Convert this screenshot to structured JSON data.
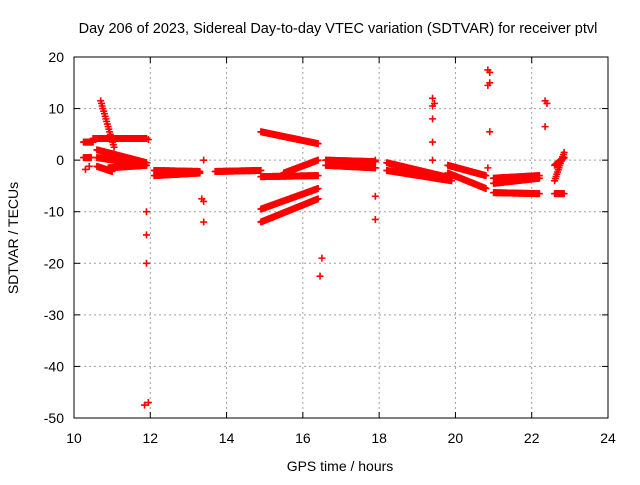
{
  "chart_data": {
    "type": "scatter",
    "title": "Day 206 of 2023, Sidereal Day-to-day VTEC variation (SDTVAR) for receiver ptvl",
    "xlabel": "GPS time / hours",
    "ylabel": "SDTVAR / TECUs",
    "xlim": [
      10,
      24
    ],
    "ylim": [
      -50,
      20
    ],
    "xticks": [
      "10",
      "12",
      "14",
      "16",
      "18",
      "20",
      "22",
      "24"
    ],
    "yticks": [
      "20",
      "10",
      "0",
      "-10",
      "-20",
      "-30",
      "-40",
      "-50"
    ],
    "grid": true,
    "marker": "plus",
    "color": "#ff0000",
    "segments": [
      {
        "x0": 10.25,
        "x1": 10.5,
        "y0": 3.5,
        "y1": 3.5
      },
      {
        "x0": 10.25,
        "x1": 10.45,
        "y0": 0.5,
        "y1": 0.5
      },
      {
        "x0": 10.7,
        "x1": 11.05,
        "y0": 11.5,
        "y1": 2.5
      },
      {
        "x0": 10.5,
        "x1": 11.9,
        "y0": 4.2,
        "y1": 4.2
      },
      {
        "x0": 10.6,
        "x1": 11.9,
        "y0": 2.0,
        "y1": -0.5
      },
      {
        "x0": 10.6,
        "x1": 11.9,
        "y0": 0.5,
        "y1": -1.0
      },
      {
        "x0": 10.9,
        "x1": 11.9,
        "y0": -1.5,
        "y1": -1.0
      },
      {
        "x0": 10.6,
        "x1": 11.0,
        "y0": -1.2,
        "y1": -2.2
      },
      {
        "x0": 12.1,
        "x1": 13.3,
        "y0": -2.0,
        "y1": -2.2
      },
      {
        "x0": 12.1,
        "x1": 13.3,
        "y0": -3.0,
        "y1": -2.5
      },
      {
        "x0": 13.7,
        "x1": 14.9,
        "y0": -2.2,
        "y1": -2.0
      },
      {
        "x0": 14.9,
        "x1": 16.4,
        "y0": 5.5,
        "y1": 3.2
      },
      {
        "x0": 14.9,
        "x1": 16.4,
        "y0": -3.2,
        "y1": -3.0
      },
      {
        "x0": 15.5,
        "x1": 16.4,
        "y0": -2.5,
        "y1": 0.0
      },
      {
        "x0": 14.9,
        "x1": 16.4,
        "y0": -9.5,
        "y1": -5.5
      },
      {
        "x0": 14.9,
        "x1": 16.4,
        "y0": -12.0,
        "y1": -7.5
      },
      {
        "x0": 16.6,
        "x1": 17.9,
        "y0": 0.0,
        "y1": -0.3
      },
      {
        "x0": 16.6,
        "x1": 17.9,
        "y0": -1.0,
        "y1": -1.5
      },
      {
        "x0": 18.2,
        "x1": 19.9,
        "y0": -0.5,
        "y1": -3.5
      },
      {
        "x0": 18.2,
        "x1": 19.9,
        "y0": -2.0,
        "y1": -4.0
      },
      {
        "x0": 19.8,
        "x1": 20.8,
        "y0": -1.0,
        "y1": -3.0
      },
      {
        "x0": 19.8,
        "x1": 20.8,
        "y0": -2.5,
        "y1": -5.5
      },
      {
        "x0": 21.0,
        "x1": 22.2,
        "y0": -3.5,
        "y1": -3.0
      },
      {
        "x0": 21.0,
        "x1": 22.2,
        "y0": -4.5,
        "y1": -3.5
      },
      {
        "x0": 21.0,
        "x1": 22.2,
        "y0": -6.3,
        "y1": -6.5
      },
      {
        "x0": 22.6,
        "x1": 22.85,
        "y0": -6.5,
        "y1": -6.5
      },
      {
        "x0": 22.6,
        "x1": 22.85,
        "y0": -4.0,
        "y1": 1.5
      },
      {
        "x0": 22.6,
        "x1": 22.85,
        "y0": -1.0,
        "y1": 0.5
      }
    ],
    "points": [
      [
        10.3,
        -1.8
      ],
      [
        10.4,
        -1.2
      ],
      [
        11.95,
        4.0
      ],
      [
        11.9,
        -10.0
      ],
      [
        11.9,
        -14.5
      ],
      [
        11.9,
        -20.0
      ],
      [
        11.85,
        -47.5
      ],
      [
        11.95,
        -47.0
      ],
      [
        13.4,
        0.0
      ],
      [
        13.35,
        -7.5
      ],
      [
        13.4,
        -8.0
      ],
      [
        13.4,
        -12.0
      ],
      [
        16.5,
        -19.0
      ],
      [
        16.45,
        -22.5
      ],
      [
        17.9,
        0.0
      ],
      [
        17.9,
        -7.0
      ],
      [
        17.9,
        -11.5
      ],
      [
        19.4,
        12.0
      ],
      [
        19.45,
        11.0
      ],
      [
        19.4,
        10.5
      ],
      [
        19.4,
        8.0
      ],
      [
        19.4,
        3.5
      ],
      [
        19.4,
        0.0
      ],
      [
        20.85,
        17.5
      ],
      [
        20.9,
        17.0
      ],
      [
        20.9,
        15.0
      ],
      [
        20.85,
        14.5
      ],
      [
        20.9,
        5.5
      ],
      [
        20.85,
        -1.5
      ],
      [
        22.35,
        11.5
      ],
      [
        22.4,
        11.0
      ],
      [
        22.35,
        6.5
      ]
    ]
  }
}
